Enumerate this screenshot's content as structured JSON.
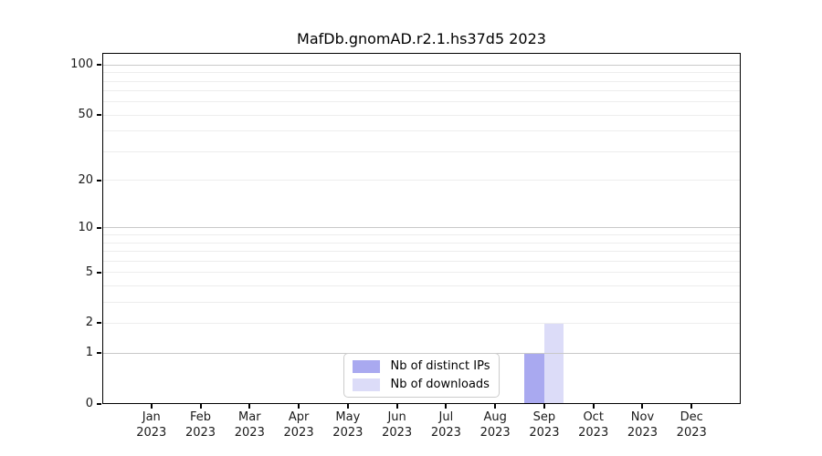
{
  "chart_data": {
    "type": "bar",
    "title": "MafDb.gnomAD.r2.1.hs37d5 2023",
    "categories": [
      "Jan",
      "Feb",
      "Mar",
      "Apr",
      "May",
      "Jun",
      "Jul",
      "Aug",
      "Sep",
      "Oct",
      "Nov",
      "Dec"
    ],
    "tick_year": "2023",
    "series": [
      {
        "name": "Nb of distinct IPs",
        "color": "#a9a9f0",
        "values": [
          0,
          0,
          0,
          0,
          0,
          0,
          0,
          0,
          1,
          0,
          0,
          0
        ]
      },
      {
        "name": "Nb of downloads",
        "color": "#dcdcf8",
        "values": [
          0,
          0,
          0,
          0,
          0,
          0,
          0,
          0,
          2,
          0,
          0,
          0
        ]
      }
    ],
    "yscale": "log1p",
    "ylim": [
      0,
      117
    ],
    "y_ticks": [
      100,
      50,
      20,
      10,
      5,
      2,
      1,
      0
    ],
    "y_gridlines_major": [
      1,
      10,
      100
    ],
    "y_gridlines_minor": [
      2,
      3,
      4,
      5,
      6,
      7,
      8,
      9,
      20,
      30,
      40,
      50,
      60,
      70,
      80,
      90
    ],
    "legend_position": "lower center",
    "grid": true
  },
  "colors": {
    "bar_distinct_ips": "#a9a9f0",
    "bar_downloads": "#dcdcf8",
    "grid_major": "#c9c9c9",
    "grid_minor": "#ededed",
    "axis": "#000000",
    "text": "#1a1a1a",
    "legend_border": "#cccccc",
    "background": "#ffffff"
  }
}
